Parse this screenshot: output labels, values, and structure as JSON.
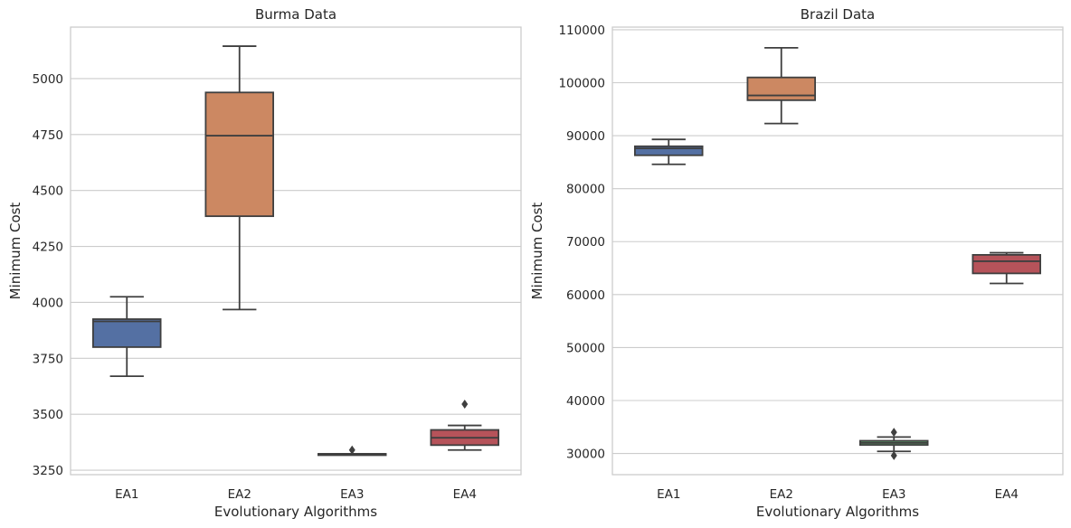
{
  "chart_data": [
    {
      "type": "box",
      "title": "Burma Data",
      "xlabel": "Evolutionary Algorithms",
      "ylabel": "Minimum Cost",
      "ylim": [
        3230,
        5230
      ],
      "yticks": [
        3250,
        3500,
        3750,
        4000,
        4250,
        4500,
        4750,
        5000
      ],
      "ytick_labels": [
        "3250",
        "3500",
        "3750",
        "4000",
        "4250",
        "4500",
        "4750",
        "5000"
      ],
      "grid": "y",
      "categories": [
        "EA1",
        "EA2",
        "EA3",
        "EA4"
      ],
      "boxes": [
        {
          "label": "EA1",
          "whisker_low": 3670,
          "q1": 3800,
          "median": 3915,
          "q3": 3925,
          "whisker_high": 4025,
          "outliers": [],
          "color": "#5470a3"
        },
        {
          "label": "EA2",
          "whisker_low": 3968,
          "q1": 4385,
          "median": 4745,
          "q3": 4938,
          "whisker_high": 5145,
          "outliers": [],
          "color": "#cc8862"
        },
        {
          "label": "EA3",
          "whisker_low": 3323,
          "q1": 3323,
          "median": 3323,
          "q3": 3323,
          "whisker_high": 3323,
          "outliers": [
            3340
          ],
          "color": "#5b9467"
        },
        {
          "label": "EA4",
          "whisker_low": 3340,
          "q1": 3362,
          "median": 3395,
          "q3": 3430,
          "whisker_high": 3450,
          "outliers": [
            3545
          ],
          "color": "#b6535a"
        }
      ]
    },
    {
      "type": "box",
      "title": "Brazil Data",
      "xlabel": "Evolutionary Algorithms",
      "ylabel": "Minimum Cost",
      "ylim": [
        26000,
        110500
      ],
      "yticks": [
        30000,
        40000,
        50000,
        60000,
        70000,
        80000,
        90000,
        100000,
        110000
      ],
      "ytick_labels": [
        "30000",
        "40000",
        "50000",
        "60000",
        "70000",
        "80000",
        "90000",
        "100000",
        "110000"
      ],
      "grid": "y",
      "categories": [
        "EA1",
        "EA2",
        "EA3",
        "EA4"
      ],
      "boxes": [
        {
          "label": "EA1",
          "whisker_low": 84600,
          "q1": 86300,
          "median": 87600,
          "q3": 88000,
          "whisker_high": 89300,
          "outliers": [],
          "color": "#5470a3"
        },
        {
          "label": "EA2",
          "whisker_low": 92300,
          "q1": 96700,
          "median": 97600,
          "q3": 101000,
          "whisker_high": 106600,
          "outliers": [],
          "color": "#cc8862"
        },
        {
          "label": "EA3",
          "whisker_low": 30400,
          "q1": 31600,
          "median": 32000,
          "q3": 32400,
          "whisker_high": 33100,
          "outliers": [
            34000,
            29600
          ],
          "color": "#5b9467"
        },
        {
          "label": "EA4",
          "whisker_low": 62100,
          "q1": 64000,
          "median": 66300,
          "q3": 67500,
          "whisker_high": 67900,
          "outliers": [],
          "color": "#b6535a"
        }
      ]
    }
  ]
}
